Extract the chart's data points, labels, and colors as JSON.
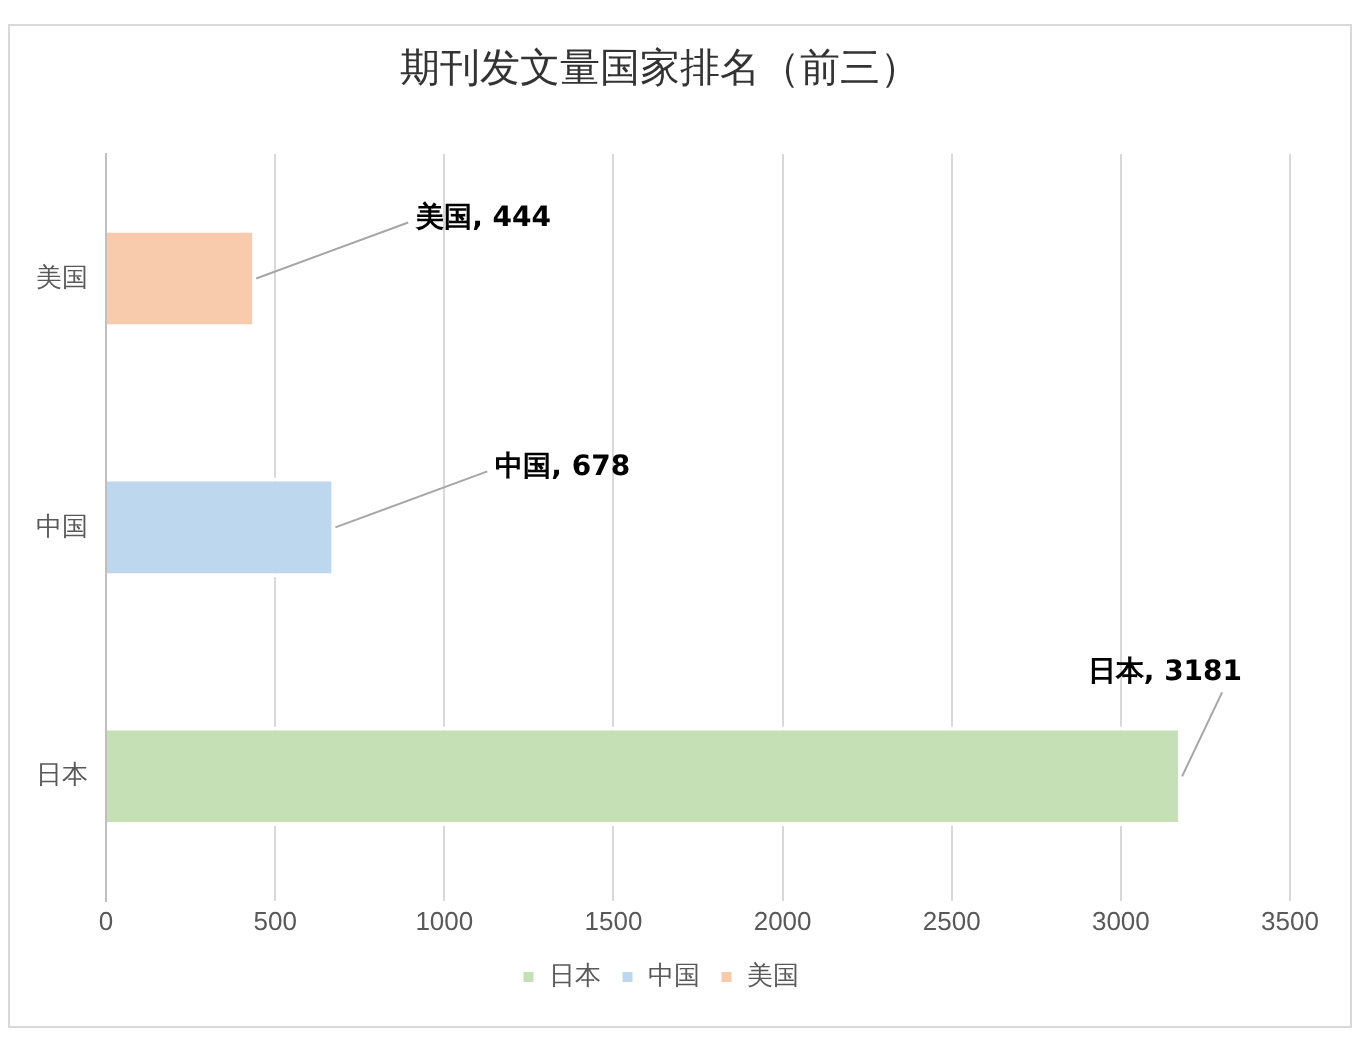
{
  "chart_data": {
    "type": "bar",
    "orientation": "horizontal",
    "stacked": true,
    "title": "期刊发文量国家排名（前三）",
    "categories": [
      "美国",
      "中国",
      "日本"
    ],
    "series": [
      {
        "name": "日本",
        "color": "#c5e0b4",
        "values": [
          null,
          null,
          3181
        ],
        "value_labels": [
          null,
          null,
          "日本, 3181"
        ]
      },
      {
        "name": "中国",
        "color": "#bdd7ee",
        "values": [
          null,
          678,
          null
        ],
        "value_labels": [
          null,
          "中国, 678",
          null
        ]
      },
      {
        "name": "美国",
        "color": "#f8cbad",
        "values": [
          444,
          null,
          null
        ],
        "value_labels": [
          "美国, 444",
          null,
          null
        ]
      }
    ],
    "xlim": [
      0,
      3500
    ],
    "xticks": [
      0,
      500,
      1000,
      1500,
      2000,
      2500,
      3000,
      3500
    ],
    "grid": "x",
    "legend": "bottom"
  }
}
